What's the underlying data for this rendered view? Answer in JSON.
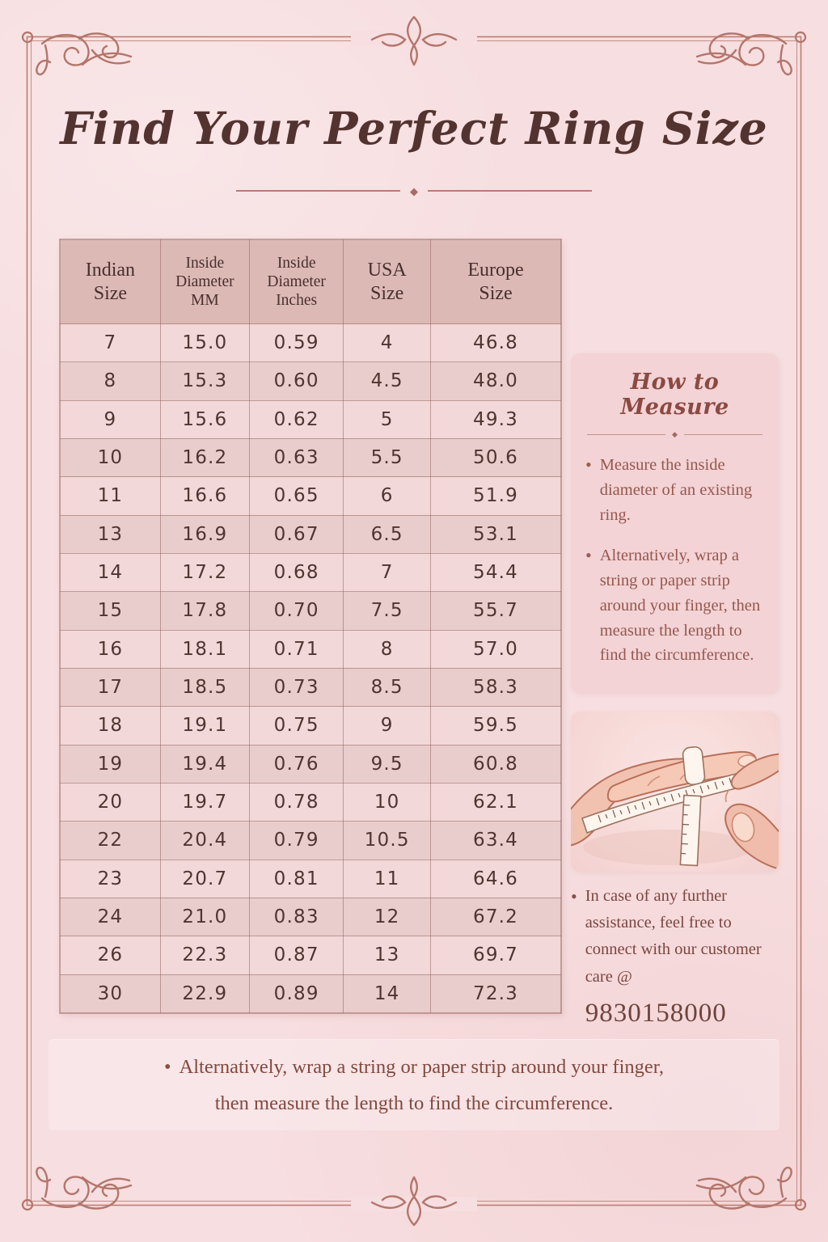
{
  "page": {
    "title": "Find Your Perfect Ring Size"
  },
  "table": {
    "headers": [
      "Indian\nSize",
      "Inside\nDiameter\nMM",
      "Inside\nDiameter\nInches",
      "USA\nSize",
      "Europe\nSize"
    ],
    "rows": [
      [
        "7",
        "15.0",
        "0.59",
        "4",
        "46.8"
      ],
      [
        "8",
        "15.3",
        "0.60",
        "4.5",
        "48.0"
      ],
      [
        "9",
        "15.6",
        "0.62",
        "5",
        "49.3"
      ],
      [
        "10",
        "16.2",
        "0.63",
        "5.5",
        "50.6"
      ],
      [
        "11",
        "16.6",
        "0.65",
        "6",
        "51.9"
      ],
      [
        "13",
        "16.9",
        "0.67",
        "6.5",
        "53.1"
      ],
      [
        "14",
        "17.2",
        "0.68",
        "7",
        "54.4"
      ],
      [
        "15",
        "17.8",
        "0.70",
        "7.5",
        "55.7"
      ],
      [
        "16",
        "18.1",
        "0.71",
        "8",
        "57.0"
      ],
      [
        "17",
        "18.5",
        "0.73",
        "8.5",
        "58.3"
      ],
      [
        "18",
        "19.1",
        "0.75",
        "9",
        "59.5"
      ],
      [
        "19",
        "19.4",
        "0.76",
        "9.5",
        "60.8"
      ],
      [
        "20",
        "19.7",
        "0.78",
        "10",
        "62.1"
      ],
      [
        "22",
        "20.4",
        "0.79",
        "10.5",
        "63.4"
      ],
      [
        "23",
        "20.7",
        "0.81",
        "11",
        "64.6"
      ],
      [
        "24",
        "21.0",
        "0.83",
        "12",
        "67.2"
      ],
      [
        "26",
        "22.3",
        "0.87",
        "13",
        "69.7"
      ],
      [
        "30",
        "22.9",
        "0.89",
        "14",
        "72.3"
      ]
    ]
  },
  "sidebar": {
    "heading": "How to Measure",
    "bullets": [
      "Measure the inside diameter of an existing ring.",
      "Alternatively, wrap a string or paper strip around your finger, then measure the length to find the circumference."
    ],
    "assistance_text": "In case of any further assistance, feel free to connect with our customer care @",
    "phone": "9830158000",
    "illustration": "hands-measuring-finger-with-tape"
  },
  "footer": {
    "line1": "Alternatively, wrap a string or paper strip around your finger,",
    "line2": "then measure the length to find the circumference."
  },
  "icons": {
    "bullet": "•",
    "diamond": "◆"
  },
  "colors": {
    "page_bg": "#f7dee0",
    "frame_line": "#bb7e73",
    "title_text": "#533330",
    "table_header_bg": "#ddb9b6",
    "row_light": "#f2d8d8",
    "row_dark": "#e9cdcd",
    "cell_text": "#4e3531",
    "panel_bg": "#f3d3d5",
    "sidebar_heading": "#8a4a42",
    "sidebar_text": "#95574e",
    "phone_text": "#6f433c",
    "footer_text": "#82493f"
  }
}
